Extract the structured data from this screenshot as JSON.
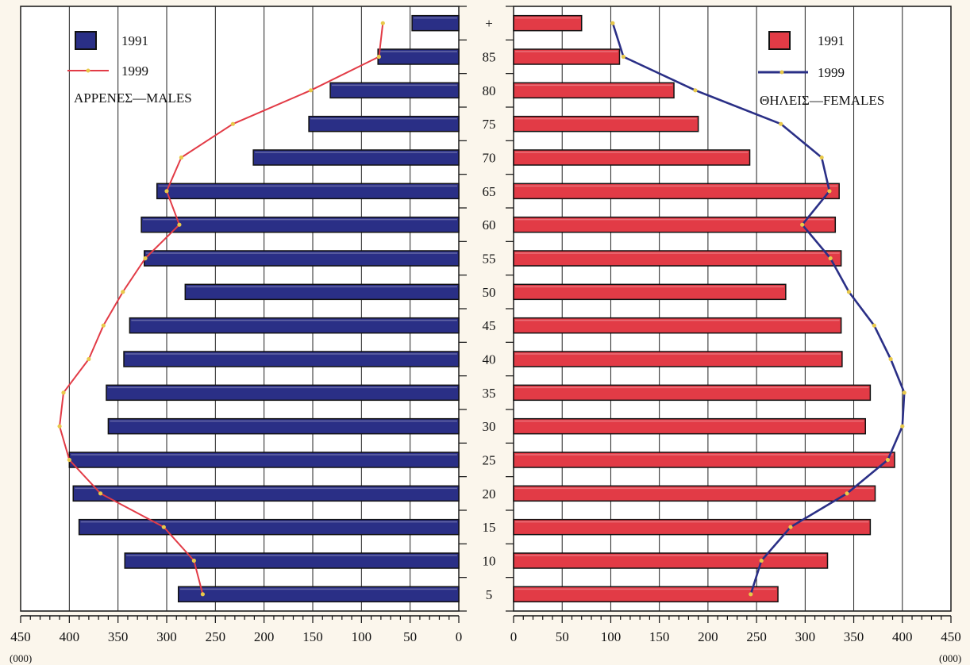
{
  "chart_data": [
    {
      "type": "bar",
      "side": "left",
      "panel_label": "ΑΡΡΕΝΕΣ—MALES",
      "categories": [
        "5",
        "10",
        "15",
        "20",
        "25",
        "30",
        "35",
        "40",
        "45",
        "50",
        "55",
        "60",
        "65",
        "70",
        "75",
        "80",
        "85",
        "+"
      ],
      "series": [
        {
          "name": "1991",
          "kind": "bar",
          "color": "#2a2f86",
          "values": [
            288,
            343,
            390,
            396,
            400,
            360,
            362,
            344,
            338,
            281,
            323,
            326,
            310,
            211,
            154,
            132,
            83,
            48
          ]
        },
        {
          "name": "1999",
          "kind": "line",
          "color": "#e23b46",
          "values": [
            263,
            272,
            303,
            368,
            400,
            410,
            406,
            380,
            365,
            345,
            322,
            287,
            300,
            285,
            232,
            152,
            82,
            78
          ]
        }
      ],
      "xlim": [
        450,
        0
      ],
      "xticks": [
        450,
        400,
        350,
        300,
        250,
        200,
        150,
        100,
        50,
        0
      ],
      "unit_label": "(000)",
      "legend": "top-left"
    },
    {
      "type": "bar",
      "side": "right",
      "panel_label": "ΘΗΛΕΙΣ—FEMALES",
      "categories": [
        "5",
        "10",
        "15",
        "20",
        "25",
        "30",
        "35",
        "40",
        "45",
        "50",
        "55",
        "60",
        "65",
        "70",
        "75",
        "80",
        "85",
        "+"
      ],
      "series": [
        {
          "name": "1991",
          "kind": "bar",
          "color": "#e23b46",
          "values": [
            272,
            323,
            367,
            372,
            392,
            362,
            367,
            338,
            337,
            280,
            337,
            331,
            335,
            243,
            190,
            165,
            109,
            70
          ]
        },
        {
          "name": "1999",
          "kind": "line",
          "color": "#2a2f86",
          "values": [
            244,
            255,
            285,
            343,
            385,
            400,
            402,
            388,
            371,
            345,
            326,
            297,
            325,
            317,
            275,
            187,
            113,
            102
          ]
        }
      ],
      "xlim": [
        0,
        450
      ],
      "xticks": [
        0,
        50,
        100,
        150,
        200,
        250,
        300,
        350,
        400,
        450
      ],
      "unit_label": "(000)",
      "legend": "top-right"
    }
  ]
}
